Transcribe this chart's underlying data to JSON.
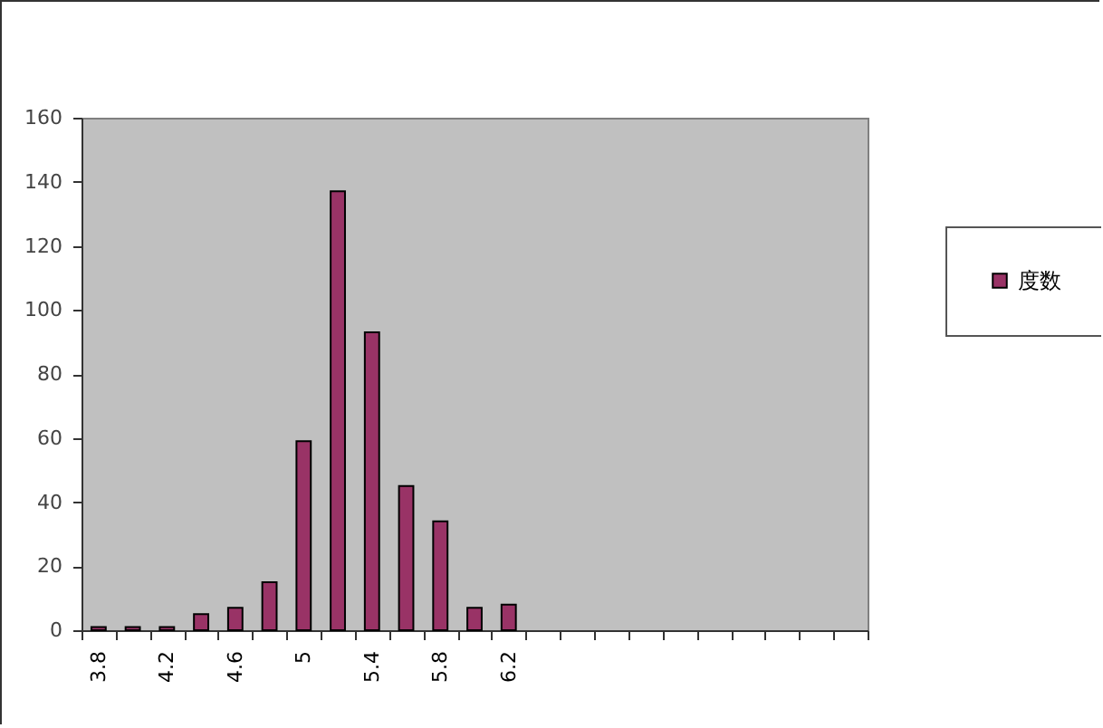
{
  "chart_data": {
    "type": "bar",
    "categories": [
      "3.8",
      null,
      "4.2",
      null,
      "4.6",
      null,
      "5",
      null,
      "5.4",
      null,
      "5.8",
      null,
      "6.2",
      null,
      null,
      null,
      null,
      null,
      null,
      null,
      null,
      null,
      null
    ],
    "series": [
      {
        "name": "度数",
        "color": "#993366",
        "values": [
          1,
          1,
          1,
          5,
          7,
          15,
          59,
          137,
          93,
          45,
          34,
          7,
          8,
          null,
          null,
          null,
          null,
          null,
          null,
          null,
          null,
          null,
          null
        ]
      }
    ],
    "ylim": [
      0,
      160
    ],
    "yticks": [
      0,
      20,
      40,
      60,
      80,
      100,
      120,
      140,
      160
    ],
    "grid": false,
    "legend": "right"
  }
}
